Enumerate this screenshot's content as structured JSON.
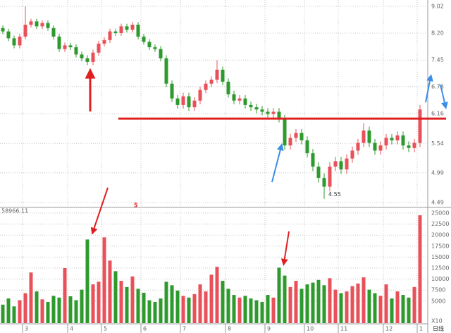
{
  "chart_data": [
    {
      "type": "candlestick",
      "log_scale": true,
      "grid": true,
      "up_color": "#e8505a",
      "down_color": "#2e9a2e",
      "categories": [
        null,
        null,
        null,
        null,
        "3",
        null,
        null,
        null,
        null,
        null,
        null,
        null,
        "4",
        null,
        null,
        null,
        null,
        null,
        "5",
        null,
        null,
        null,
        null,
        null,
        null,
        "6",
        null,
        null,
        null,
        null,
        null,
        null,
        "7",
        null,
        null,
        null,
        null,
        null,
        null,
        null,
        "8",
        null,
        null,
        null,
        null,
        null,
        null,
        "9",
        null,
        null,
        null,
        null,
        null,
        null,
        "10",
        null,
        null,
        null,
        null,
        null,
        "11",
        null,
        null,
        null,
        null,
        null,
        null,
        null,
        "12",
        null,
        null,
        null,
        null,
        null,
        "1"
      ],
      "ohlc": [
        [
          8.35,
          8.43,
          8.17,
          8.25
        ],
        [
          8.25,
          8.33,
          7.97,
          8.05
        ],
        [
          8.05,
          8.13,
          7.77,
          7.85
        ],
        [
          7.85,
          8.18,
          7.77,
          8.1
        ],
        [
          8.1,
          9.02,
          8.02,
          8.45
        ],
        [
          8.45,
          8.63,
          8.37,
          8.55
        ],
        [
          8.55,
          8.63,
          8.32,
          8.4
        ],
        [
          8.4,
          8.58,
          8.32,
          8.5
        ],
        [
          8.5,
          8.58,
          8.27,
          8.35
        ],
        [
          8.35,
          8.43,
          8.02,
          8.1
        ],
        [
          8.1,
          8.18,
          7.67,
          7.75
        ],
        [
          7.75,
          7.93,
          7.67,
          7.85
        ],
        [
          7.85,
          7.93,
          7.72,
          7.8
        ],
        [
          7.8,
          7.88,
          7.52,
          7.6
        ],
        [
          7.6,
          7.68,
          7.42,
          7.5
        ],
        [
          7.5,
          7.58,
          7.32,
          7.4
        ],
        [
          7.4,
          7.73,
          7.32,
          7.65
        ],
        [
          7.65,
          7.98,
          7.57,
          7.9
        ],
        [
          7.9,
          8.08,
          7.82,
          8.0
        ],
        [
          8.0,
          8.33,
          7.92,
          8.25
        ],
        [
          8.25,
          8.33,
          8.12,
          8.2
        ],
        [
          8.2,
          8.48,
          8.12,
          8.4
        ],
        [
          8.4,
          8.48,
          8.22,
          8.3
        ],
        [
          8.3,
          8.53,
          8.22,
          8.45
        ],
        [
          8.45,
          8.53,
          8.02,
          8.1
        ],
        [
          8.1,
          8.18,
          7.87,
          7.95
        ],
        [
          7.95,
          8.03,
          7.72,
          7.8
        ],
        [
          7.8,
          7.88,
          7.67,
          7.75
        ],
        [
          7.75,
          7.83,
          7.42,
          7.5
        ],
        [
          7.5,
          7.58,
          6.77,
          6.85
        ],
        [
          6.85,
          6.93,
          6.42,
          6.5
        ],
        [
          6.5,
          6.58,
          6.27,
          6.35
        ],
        [
          6.35,
          6.63,
          6.27,
          6.55
        ],
        [
          6.55,
          6.63,
          6.22,
          6.3
        ],
        [
          6.3,
          6.53,
          6.22,
          6.45
        ],
        [
          6.45,
          6.78,
          6.37,
          6.7
        ],
        [
          6.7,
          6.93,
          6.62,
          6.85
        ],
        [
          6.85,
          7.03,
          6.77,
          6.95
        ],
        [
          6.95,
          7.45,
          6.87,
          7.2
        ],
        [
          7.2,
          7.28,
          6.82,
          6.9
        ],
        [
          6.9,
          6.98,
          6.52,
          6.6
        ],
        [
          6.6,
          6.68,
          6.37,
          6.45
        ],
        [
          6.45,
          6.58,
          6.37,
          6.5
        ],
        [
          6.5,
          6.58,
          6.27,
          6.35
        ],
        [
          6.35,
          6.43,
          6.22,
          6.3
        ],
        [
          6.3,
          6.38,
          6.17,
          6.25
        ],
        [
          6.25,
          6.33,
          6.12,
          6.2
        ],
        [
          6.2,
          6.28,
          6.07,
          6.15
        ],
        [
          6.15,
          6.28,
          6.07,
          6.2
        ],
        [
          6.2,
          6.28,
          5.97,
          6.05
        ],
        [
          6.05,
          6.13,
          5.42,
          5.5
        ],
        [
          5.5,
          5.73,
          5.42,
          5.65
        ],
        [
          5.65,
          5.83,
          5.57,
          5.75
        ],
        [
          5.75,
          5.83,
          5.52,
          5.6
        ],
        [
          5.6,
          5.68,
          5.27,
          5.35
        ],
        [
          5.35,
          5.43,
          5.02,
          5.1
        ],
        [
          5.1,
          5.18,
          4.82,
          4.9
        ],
        [
          4.9,
          4.98,
          4.55,
          4.75
        ],
        [
          4.75,
          5.18,
          4.67,
          5.1
        ],
        [
          5.1,
          5.28,
          5.02,
          5.2
        ],
        [
          5.2,
          5.28,
          4.97,
          5.05
        ],
        [
          5.05,
          5.33,
          4.97,
          5.25
        ],
        [
          5.25,
          5.48,
          5.17,
          5.4
        ],
        [
          5.4,
          5.63,
          5.32,
          5.55
        ],
        [
          5.55,
          5.95,
          5.47,
          5.8
        ],
        [
          5.8,
          5.88,
          5.47,
          5.55
        ],
        [
          5.55,
          5.63,
          5.32,
          5.4
        ],
        [
          5.4,
          5.58,
          5.32,
          5.5
        ],
        [
          5.5,
          5.73,
          5.42,
          5.65
        ],
        [
          5.65,
          5.73,
          5.52,
          5.6
        ],
        [
          5.6,
          5.78,
          5.52,
          5.7
        ],
        [
          5.7,
          5.78,
          5.42,
          5.5
        ],
        [
          5.5,
          5.58,
          5.37,
          5.45
        ],
        [
          5.45,
          5.63,
          5.37,
          5.55
        ],
        [
          5.55,
          6.35,
          5.47,
          6.25
        ]
      ],
      "ylim": [
        4.49,
        9.02
      ],
      "yticks": [
        9.02,
        {
          "value": 8.2,
          "label": "8.20"
        },
        7.45,
        6.78,
        6.16,
        5.54,
        4.99,
        4.49
      ],
      "support_line": 6.05,
      "support_color": "#e02020",
      "low_label": "4.55",
      "marker_text": "5"
    },
    {
      "type": "bar",
      "title": "58966.11",
      "unit_label": "X10",
      "grid": true,
      "values": [
        4200,
        5600,
        3800,
        5200,
        6800,
        11500,
        7200,
        5400,
        4800,
        6200,
        5800,
        12500,
        6100,
        5200,
        7600,
        19000,
        8800,
        9400,
        19500,
        14200,
        11800,
        9600,
        8200,
        10600,
        7800,
        6900,
        5200,
        4800,
        5600,
        9400,
        8600,
        7400,
        6200,
        5800,
        6600,
        8800,
        7200,
        11000,
        12800,
        9600,
        7800,
        6400,
        5800,
        6200,
        5600,
        5200,
        4800,
        6400,
        5800,
        12600,
        10800,
        8200,
        9600,
        7800,
        8800,
        9200,
        9800,
        8600,
        10200,
        7600,
        6800,
        7200,
        8400,
        9000,
        10400,
        7600,
        6800,
        6200,
        8800,
        5600,
        7200,
        6400,
        5800,
        8200,
        24500
      ],
      "ylim": [
        0,
        25000
      ],
      "yticks": [
        5000,
        7500,
        10000,
        12500,
        15000,
        17500,
        20000,
        22500,
        25000
      ],
      "period_label": "日线"
    }
  ]
}
